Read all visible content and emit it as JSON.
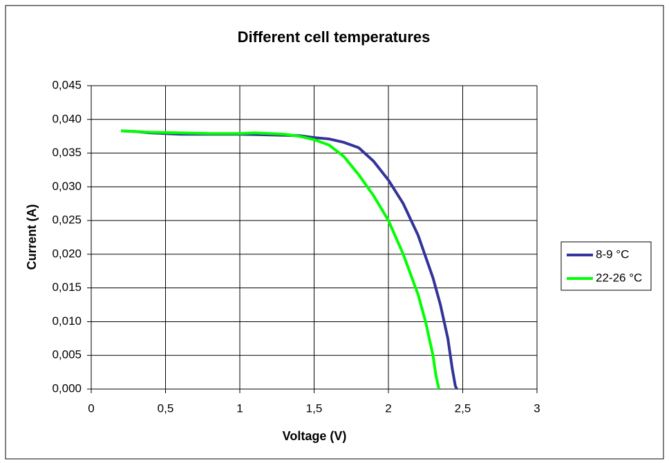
{
  "chart_data": {
    "type": "line",
    "title": "Different cell temperatures",
    "x_label": "Voltage (V)",
    "y_label": "Current (A)",
    "xlim": [
      0,
      3
    ],
    "xticks": [
      0,
      {
        "value": 0.5,
        "label": "0,5"
      },
      1,
      {
        "value": 1.5,
        "label": "1,5"
      },
      2,
      {
        "value": 2.5,
        "label": "2,5"
      },
      3
    ],
    "ylim": [
      0,
      0.045
    ],
    "yticks": [
      {
        "value": 0,
        "label": "0,000"
      },
      {
        "value": 0.005,
        "label": "0,005"
      },
      {
        "value": 0.01,
        "label": "0,010"
      },
      {
        "value": 0.015,
        "label": "0,015"
      },
      {
        "value": 0.02,
        "label": "0,020"
      },
      {
        "value": 0.025,
        "label": "0,025"
      },
      {
        "value": 0.03,
        "label": "0,030"
      },
      {
        "value": 0.035,
        "label": "0,035"
      },
      {
        "value": 0.04,
        "label": "0,040"
      },
      {
        "value": 0.045,
        "label": "0,045"
      }
    ],
    "grid": true,
    "legend": "right",
    "series": [
      {
        "name": "8-9 °C",
        "color": "#333399",
        "x": [
          0.2,
          0.3,
          0.4,
          0.5,
          0.6,
          0.8,
          1.0,
          1.2,
          1.4,
          1.5,
          1.6,
          1.7,
          1.8,
          1.9,
          2.0,
          2.1,
          2.2,
          2.3,
          2.35,
          2.4,
          2.43,
          2.45,
          2.46
        ],
        "values": [
          0.0383,
          0.0382,
          0.038,
          0.0379,
          0.0378,
          0.0378,
          0.0378,
          0.0377,
          0.0376,
          0.0373,
          0.0371,
          0.0366,
          0.0358,
          0.0338,
          0.031,
          0.0275,
          0.0228,
          0.0165,
          0.0125,
          0.0075,
          0.003,
          0.0005,
          0
        ]
      },
      {
        "name": "22-26 °C",
        "color": "#00ff00",
        "x": [
          0.2,
          0.4,
          0.6,
          0.8,
          1.0,
          1.1,
          1.2,
          1.3,
          1.4,
          1.5,
          1.6,
          1.7,
          1.8,
          1.9,
          2.0,
          2.1,
          2.2,
          2.25,
          2.3,
          2.32,
          2.34
        ],
        "values": [
          0.0383,
          0.0381,
          0.038,
          0.0379,
          0.0379,
          0.038,
          0.0379,
          0.0378,
          0.0375,
          0.037,
          0.0362,
          0.0345,
          0.0318,
          0.0287,
          0.025,
          0.02,
          0.014,
          0.01,
          0.005,
          0.002,
          0
        ]
      }
    ]
  }
}
